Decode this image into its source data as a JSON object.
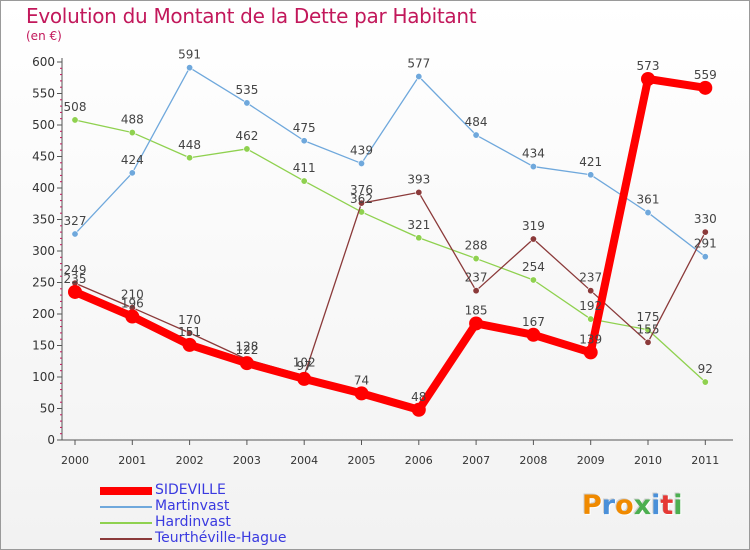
{
  "chart_data": {
    "type": "line",
    "title": "Evolution du Montant de la Dette par Habitant",
    "subtitle": "(en €)",
    "xlabel": "",
    "ylabel": "",
    "ylim": [
      0,
      600
    ],
    "yticks": [
      0,
      50,
      100,
      150,
      200,
      250,
      300,
      350,
      400,
      450,
      500,
      550,
      600
    ],
    "grid": false,
    "legend": "bottom-left",
    "categories": [
      "2000",
      "2001",
      "2002",
      "2003",
      "2004",
      "2005",
      "2006",
      "2007",
      "2008",
      "2009",
      "2010",
      "2011"
    ],
    "series": [
      {
        "name": "SIDEVILLE",
        "color": "#ff0000",
        "values": [
          235,
          196,
          151,
          122,
          97,
          74,
          48,
          185,
          167,
          139,
          573,
          559
        ]
      },
      {
        "name": "Martinvast",
        "color": "#6fa8dc",
        "values": [
          327,
          424,
          591,
          535,
          475,
          439,
          577,
          484,
          434,
          421,
          361,
          291
        ]
      },
      {
        "name": "Hardinvast",
        "color": "#8fd14f",
        "values": [
          508,
          488,
          448,
          462,
          411,
          362,
          321,
          288,
          254,
          192,
          175,
          92
        ]
      },
      {
        "name": "Teurthéville-Hague",
        "color": "#8b3a3a",
        "values": [
          249,
          210,
          170,
          128,
          102,
          376,
          393,
          237,
          319,
          237,
          155,
          330
        ]
      }
    ]
  },
  "logo": {
    "letters": [
      "P",
      "r",
      "o",
      "x",
      "i",
      "t",
      "i"
    ],
    "colors": [
      "#f08a00",
      "#4a90d9",
      "#f08a00",
      "#4caf50",
      "#4a90d9",
      "#e53935",
      "#4caf50"
    ]
  }
}
